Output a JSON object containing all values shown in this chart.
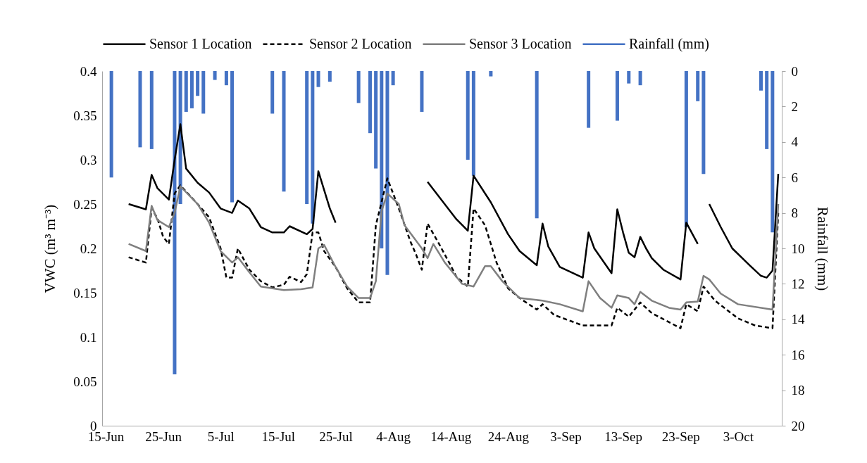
{
  "chart_data": {
    "type": "line",
    "ylabel": "VWC (m³ m⁻³)",
    "y2label": "Rainfall (mm)",
    "legend": "top",
    "line_style": "solid",
    "xlim": [
      "--06-15",
      "--10-10"
    ],
    "xticks": [
      {
        "value": "--06-15",
        "label": "15-Jun"
      },
      {
        "value": "--06-25",
        "label": "25-Jun"
      },
      {
        "value": "--07-05",
        "label": "5-Jul"
      },
      {
        "value": "--07-15",
        "label": "15-Jul"
      },
      {
        "value": "--07-25",
        "label": "25-Jul"
      },
      {
        "value": "--08-04",
        "label": "4-Aug"
      },
      {
        "value": "--08-14",
        "label": "14-Aug"
      },
      {
        "value": "--08-24",
        "label": "24-Aug"
      },
      {
        "value": "--09-03",
        "label": "3-Sep"
      },
      {
        "value": "--09-13",
        "label": "13-Sep"
      },
      {
        "value": "--09-23",
        "label": "23-Sep"
      },
      {
        "value": "--10-03",
        "label": "3-Oct"
      }
    ],
    "ylim": [
      0,
      0.4
    ],
    "yticks": [
      0,
      0.05,
      0.1,
      0.15,
      0.2,
      0.25,
      0.3,
      0.35,
      0.4
    ],
    "y2lim": [
      20,
      0
    ],
    "y2ticks": [
      0,
      2,
      4,
      6,
      8,
      10,
      12,
      14,
      16,
      18,
      20
    ],
    "series": [
      {
        "name": "Sensor 1 Location",
        "color": "#000000",
        "x": [
          "--06-19",
          "--06-20",
          "--06-22",
          "--06-23",
          "--06-24",
          "--06-26",
          "--06-27",
          "--06-28",
          "--06-29",
          "--07-01",
          "--07-03",
          "--07-05",
          "--07-07",
          "--07-08",
          "--07-10",
          "--07-12",
          "--07-14",
          "--07-16",
          "--07-17",
          "--07-20",
          "--07-21",
          "--07-22",
          "--07-23",
          "--07-24",
          "--07-25",
          "--07-26",
          "--08-09",
          "--08-10",
          "--08-15",
          "--08-17",
          "--08-18",
          "--08-21",
          "--08-24",
          "--08-26",
          "--08-29",
          "--08-30",
          "--08-31",
          "--09-02",
          "--09-06",
          "--09-07",
          "--09-08",
          "--09-11",
          "--09-12",
          "--09-13",
          "--09-14",
          "--09-15",
          "--09-16",
          "--09-17",
          "--09-18",
          "--09-20",
          "--09-23",
          "--09-24",
          "--09-26",
          "--09-27",
          "--09-28",
          "--09-30",
          "--10-02",
          "--10-05",
          "--10-07",
          "--10-08",
          "--10-09",
          "--10-10"
        ],
        "values": [
          0.25,
          0.248,
          0.244,
          0.283,
          0.268,
          0.255,
          0.3,
          0.34,
          0.29,
          0.274,
          0.263,
          0.245,
          0.24,
          0.254,
          0.245,
          0.224,
          0.218,
          0.218,
          0.225,
          0.216,
          0.222,
          0.287,
          0.266,
          0.245,
          0.229,
          null,
          null,
          0.275,
          0.233,
          0.22,
          0.282,
          0.252,
          0.216,
          0.197,
          0.181,
          0.228,
          0.202,
          0.179,
          0.167,
          0.218,
          0.2,
          0.172,
          0.244,
          0.218,
          0.195,
          0.19,
          0.213,
          0.2,
          0.189,
          0.176,
          0.165,
          0.229,
          0.205,
          null,
          0.25,
          0.224,
          0.2,
          0.181,
          0.169,
          0.167,
          0.175,
          0.284
        ]
      },
      {
        "name": "Sensor 2 Location",
        "color": "#000000",
        "line_style": "dashed",
        "x": [
          "--06-19",
          "--06-22",
          "--06-23",
          "--06-24",
          "--06-25",
          "--06-26",
          "--06-27",
          "--06-28",
          "--07-01",
          "--07-03",
          "--07-05",
          "--07-06",
          "--07-07",
          "--07-08",
          "--07-10",
          "--07-12",
          "--07-14",
          "--07-16",
          "--07-17",
          "--07-19",
          "--07-20",
          "--07-21",
          "--07-22",
          "--07-23",
          "--07-25",
          "--07-27",
          "--07-29",
          "--07-31",
          "--08-01",
          "--08-03",
          "--08-05",
          "--08-07",
          "--08-08",
          "--08-09",
          "--08-10",
          "--08-12",
          "--08-14",
          "--08-15",
          "--08-17",
          "--08-18",
          "--08-20",
          "--08-22",
          "--08-24",
          "--08-26",
          "--08-29",
          "--08-30",
          "--09-01",
          "--09-06",
          "--09-11",
          "--09-12",
          "--09-14",
          "--09-16",
          "--09-18",
          "--09-23",
          "--09-24",
          "--09-26",
          "--09-27",
          "--09-29",
          "--10-03",
          "--10-06",
          "--10-09",
          "--10-10"
        ],
        "values": [
          0.19,
          0.184,
          0.245,
          0.234,
          0.213,
          0.205,
          0.262,
          0.271,
          0.25,
          0.235,
          0.2,
          0.167,
          0.167,
          0.2,
          0.176,
          0.163,
          0.156,
          0.159,
          0.168,
          0.162,
          0.171,
          0.218,
          0.218,
          0.197,
          0.179,
          0.155,
          0.139,
          0.139,
          0.226,
          0.279,
          0.245,
          0.208,
          0.193,
          0.176,
          0.228,
          0.205,
          0.181,
          0.168,
          0.157,
          0.245,
          0.226,
          0.184,
          0.155,
          0.144,
          0.131,
          0.137,
          0.125,
          0.113,
          0.113,
          0.133,
          0.123,
          0.139,
          0.127,
          0.11,
          0.137,
          0.129,
          0.157,
          0.141,
          0.121,
          0.113,
          0.11,
          0.24
        ]
      },
      {
        "name": "Sensor 3 Location",
        "color": "#7f7f7f",
        "x": [
          "--06-19",
          "--06-22",
          "--06-23",
          "--06-24",
          "--06-26",
          "--06-27",
          "--06-28",
          "--07-01",
          "--07-03",
          "--07-05",
          "--07-07",
          "--07-08",
          "--07-10",
          "--07-12",
          "--07-16",
          "--07-19",
          "--07-21",
          "--07-22",
          "--07-23",
          "--07-25",
          "--07-27",
          "--07-29",
          "--07-31",
          "--08-01",
          "--08-02",
          "--08-03",
          "--08-05",
          "--08-06",
          "--08-09",
          "--08-10",
          "--08-11",
          "--08-13",
          "--08-15",
          "--08-16",
          "--08-18",
          "--08-20",
          "--08-21",
          "--08-23",
          "--08-26",
          "--08-30",
          "--09-02",
          "--09-06",
          "--09-07",
          "--09-09",
          "--09-11",
          "--09-12",
          "--09-14",
          "--09-15",
          "--09-16",
          "--09-18",
          "--09-21",
          "--09-23",
          "--09-24",
          "--09-26",
          "--09-27",
          "--09-28",
          "--09-30",
          "--10-03",
          "--10-09",
          "--10-10"
        ],
        "values": [
          0.205,
          0.197,
          0.248,
          0.232,
          0.224,
          0.24,
          0.27,
          0.25,
          0.229,
          0.197,
          0.184,
          0.19,
          0.173,
          0.157,
          0.153,
          0.154,
          0.156,
          0.2,
          0.204,
          0.179,
          0.157,
          0.144,
          0.144,
          0.163,
          0.242,
          0.262,
          0.25,
          0.226,
          0.2,
          0.189,
          0.205,
          0.184,
          0.168,
          0.16,
          0.157,
          0.18,
          0.18,
          0.163,
          0.144,
          0.141,
          0.137,
          0.129,
          0.163,
          0.144,
          0.133,
          0.147,
          0.144,
          0.137,
          0.151,
          0.141,
          0.133,
          0.131,
          0.139,
          0.14,
          0.169,
          0.165,
          0.149,
          0.137,
          0.131,
          0.25
        ]
      },
      {
        "name": "Rainfall (mm)",
        "color": "#4472c4",
        "type": "bar",
        "axis": "y2",
        "x": [
          "--06-16",
          "--06-21",
          "--06-23",
          "--06-27",
          "--06-28",
          "--06-29",
          "--06-30",
          "--07-01",
          "--07-02",
          "--07-04",
          "--07-06",
          "--07-07",
          "--07-14",
          "--07-16",
          "--07-20",
          "--07-21",
          "--07-22",
          "--07-24",
          "--07-29",
          "--07-31",
          "--08-01",
          "--08-02",
          "--08-03",
          "--08-04",
          "--08-09",
          "--08-17",
          "--08-18",
          "--08-21",
          "--08-29",
          "--09-07",
          "--09-12",
          "--09-14",
          "--09-16",
          "--09-24",
          "--09-26",
          "--09-27",
          "--10-07",
          "--10-08",
          "--10-09"
        ],
        "values": [
          6.0,
          4.3,
          4.4,
          17.1,
          7.5,
          2.3,
          2.1,
          1.4,
          2.4,
          0.5,
          0.8,
          7.4,
          2.4,
          6.8,
          7.5,
          8.6,
          0.9,
          0.6,
          1.8,
          3.5,
          5.5,
          10.0,
          11.5,
          0.8,
          2.3,
          5.0,
          5.9,
          0.3,
          8.3,
          3.2,
          2.8,
          0.7,
          0.8,
          8.8,
          1.7,
          5.8,
          1.1,
          4.4,
          9.1
        ]
      }
    ]
  }
}
